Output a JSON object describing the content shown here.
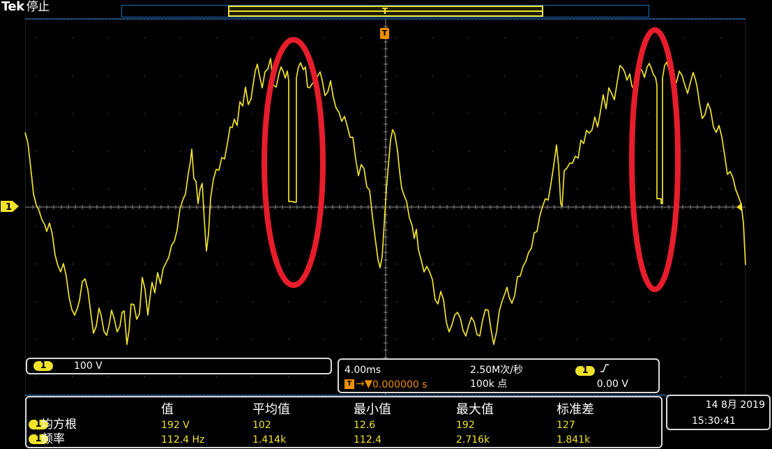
{
  "header": {
    "brand": "Tek",
    "status": "停止"
  },
  "markers": {
    "trigger_top": "T",
    "trigger_main": "T",
    "channel_marker": "1"
  },
  "colors": {
    "trace": "#f1e329",
    "trigger": "#f08f00",
    "grid": "#2e74b7",
    "highlight": "#e71d2b",
    "panel_border": "#dcdcdc"
  },
  "channel": {
    "badge": "1",
    "scale": "100 V"
  },
  "acquisition": {
    "time_scale": "4.00ms",
    "sample_rate": "2.50M次/秒",
    "delay": "0.000000 s",
    "record_length": "100k 点",
    "trigger_channel": "1",
    "trigger_level": "0.00 V"
  },
  "measurements": {
    "headers": {
      "value": "值",
      "mean": "平均值",
      "min": "最小值",
      "max": "最大值",
      "stddev": "标准差"
    },
    "rows": [
      {
        "badge": "1",
        "label": "均方根",
        "value": "192 V",
        "mean": "102",
        "min": "12.6",
        "max": "192",
        "stddev": "127"
      },
      {
        "badge": "1",
        "label": "频率",
        "value": "112.4 Hz",
        "mean": "1.414k",
        "min": "112.4",
        "max": "2.716k",
        "stddev": "1.841k"
      }
    ]
  },
  "datetime": {
    "date": "14 8月 2019",
    "time": "15:30:41"
  }
}
